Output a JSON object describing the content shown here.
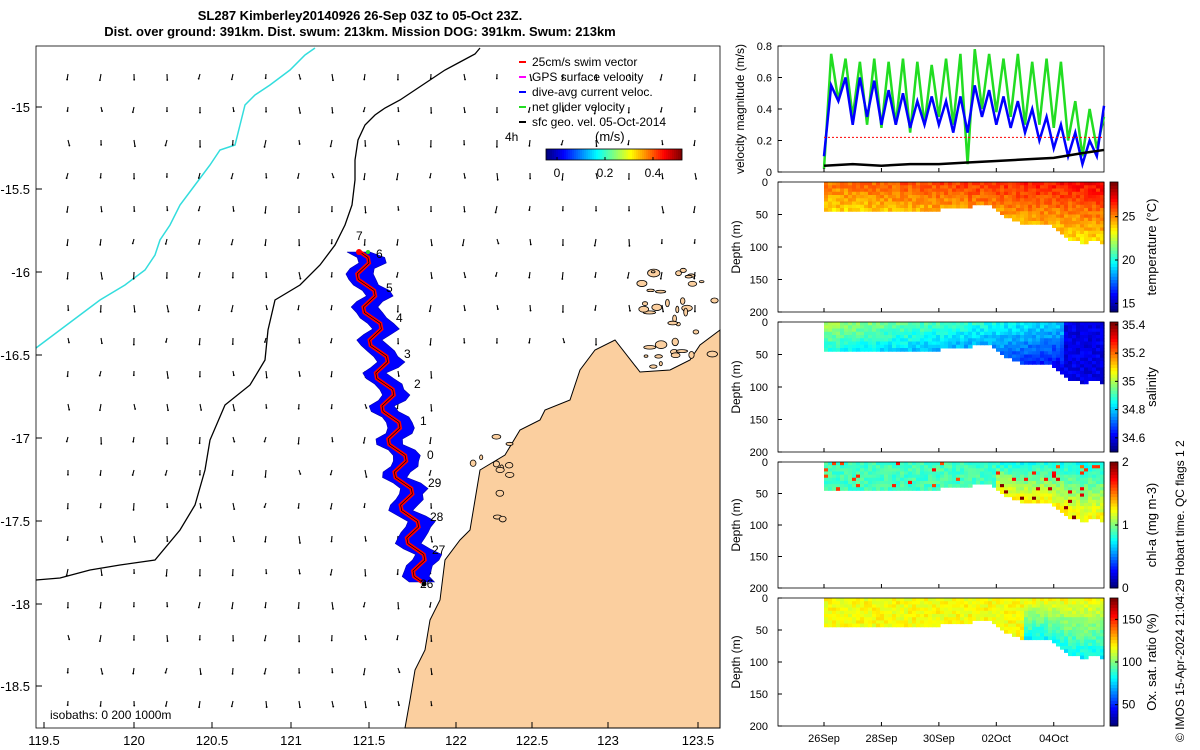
{
  "title_line1": "SL287 Kimberley20140926 26-Sep 03Z to 05-Oct 23Z.",
  "title_line2": "Dist. over ground: 391km. Dist. swum: 213km. Mission DOG: 391km. Swum: 213km",
  "footer_text": "© IMOS 15-Apr-2024 21:04:29 Hobart time. QC flags 1  2",
  "colors": {
    "land": "#fbcf9f",
    "track_blue": "#0000ff",
    "track_red": "#ff0000",
    "coast": "#33dddd",
    "green": "#22dd22"
  },
  "map": {
    "x_ticks": [
      "119.5",
      "120",
      "120.5",
      "121",
      "121.5",
      "122",
      "122.5",
      "123",
      "123.5"
    ],
    "y_ticks": [
      "-15",
      "-15.5",
      "-16",
      "-16.5",
      "-17",
      "-17.5",
      "-18",
      "-18.5"
    ],
    "legend": [
      "25cm/s swim vector",
      "GPS surface velocity",
      "dive-avg current veloc.",
      "net glider velocity",
      "sfc geo. vel. 05-Oct-2014"
    ],
    "scale_label": "4h",
    "colorbar_title": "(m/s)",
    "colorbar_ticks": [
      "0",
      "0.2",
      "0.4"
    ],
    "isobaths_label": "isobaths: 0   200  1000m",
    "track_day_labels": [
      "7",
      "6",
      "5",
      "4",
      "3",
      "2",
      "1",
      "0",
      "29",
      "28",
      "27",
      "26"
    ]
  },
  "chart_data": [
    {
      "type": "line",
      "title": "",
      "ylabel": "velocity magnitude (m/s)",
      "ylim": [
        0,
        0.8
      ],
      "y_ticks": [
        "0",
        "0.2",
        "0.4",
        "0.6",
        "0.8"
      ],
      "x_ticks": [
        "26Sep",
        "28Sep",
        "30Sep",
        "02Oct",
        "04Oct"
      ],
      "series": [
        {
          "name": "net glider velocity",
          "color": "#22dd22",
          "x": [
            0,
            0.25,
            0.5,
            0.75,
            1,
            1.25,
            1.5,
            1.75,
            2,
            2.25,
            2.5,
            2.75,
            3,
            3.25,
            3.5,
            3.75,
            4,
            4.25,
            4.5,
            4.75,
            5,
            5.25,
            5.5,
            5.75,
            6,
            6.25,
            6.5,
            6.75,
            7,
            7.25,
            7.5,
            7.75,
            8,
            8.25,
            8.5,
            8.75,
            9,
            9.25,
            9.5,
            9.75
          ],
          "y": [
            0.02,
            0.75,
            0.45,
            0.72,
            0.35,
            0.7,
            0.3,
            0.72,
            0.28,
            0.7,
            0.3,
            0.72,
            0.25,
            0.7,
            0.3,
            0.68,
            0.35,
            0.72,
            0.3,
            0.75,
            0.05,
            0.78,
            0.4,
            0.75,
            0.38,
            0.72,
            0.35,
            0.75,
            0.3,
            0.7,
            0.3,
            0.72,
            0.28,
            0.7,
            0.2,
            0.45,
            0.1,
            0.4,
            0.15,
            0.35
          ]
        },
        {
          "name": "dive-avg current veloc.",
          "color": "#0000ff",
          "x": [
            0,
            0.25,
            0.5,
            0.75,
            1,
            1.25,
            1.5,
            1.75,
            2,
            2.25,
            2.5,
            2.75,
            3,
            3.25,
            3.5,
            3.75,
            4,
            4.25,
            4.5,
            4.75,
            5,
            5.25,
            5.5,
            5.75,
            6,
            6.25,
            6.5,
            6.75,
            7,
            7.25,
            7.5,
            7.75,
            8,
            8.25,
            8.5,
            8.75,
            9,
            9.25,
            9.5,
            9.75
          ],
          "y": [
            0.1,
            0.55,
            0.45,
            0.6,
            0.3,
            0.6,
            0.35,
            0.58,
            0.3,
            0.52,
            0.3,
            0.5,
            0.28,
            0.45,
            0.3,
            0.48,
            0.3,
            0.45,
            0.25,
            0.48,
            0.25,
            0.55,
            0.35,
            0.52,
            0.3,
            0.48,
            0.28,
            0.45,
            0.25,
            0.4,
            0.2,
            0.35,
            0.15,
            0.3,
            0.1,
            0.25,
            0.05,
            0.2,
            0.1,
            0.42
          ]
        },
        {
          "name": "sfc geo. vel. 05-Oct-2014",
          "color": "#000000",
          "x": [
            0,
            1,
            2,
            3,
            4,
            5,
            6,
            7,
            8,
            9,
            9.75
          ],
          "y": [
            0.04,
            0.05,
            0.04,
            0.05,
            0.05,
            0.06,
            0.07,
            0.08,
            0.09,
            0.12,
            0.14
          ]
        },
        {
          "name": "25cm/s swim vector",
          "color": "#ff0000",
          "x": [
            0,
            9.75
          ],
          "y": [
            0.22,
            0.22
          ]
        }
      ]
    },
    {
      "type": "heatmap",
      "ylabel": "Depth (m)",
      "colorbar_label": "temperature (°C)",
      "colorbar_ticks": [
        "15",
        "20",
        "25"
      ],
      "colorbar_range": [
        14,
        29
      ],
      "y_ticks": [
        "0",
        "50",
        "100",
        "150",
        "200"
      ]
    },
    {
      "type": "heatmap",
      "ylabel": "Depth (m)",
      "colorbar_label": "salinity",
      "colorbar_ticks": [
        "34.6",
        "34.8",
        "35",
        "35.2",
        "35.4"
      ],
      "colorbar_range": [
        34.5,
        35.42
      ],
      "y_ticks": [
        "0",
        "50",
        "100",
        "150",
        "200"
      ]
    },
    {
      "type": "heatmap",
      "ylabel": "Depth (m)",
      "colorbar_label": "chl-a (mg m-3)",
      "colorbar_ticks": [
        "0",
        "1",
        "2"
      ],
      "colorbar_range": [
        0,
        2
      ],
      "y_ticks": [
        "0",
        "50",
        "100",
        "150",
        "200"
      ]
    },
    {
      "type": "heatmap",
      "ylabel": "Depth (m)",
      "colorbar_label": "Ox. sat. ratio (%)",
      "colorbar_ticks": [
        "50",
        "100",
        "150"
      ],
      "colorbar_range": [
        25,
        175
      ],
      "y_ticks": [
        "0",
        "50",
        "100",
        "150",
        "200"
      ],
      "x_ticks": [
        "26Sep",
        "28Sep",
        "30Sep",
        "02Oct",
        "04Oct"
      ]
    }
  ]
}
